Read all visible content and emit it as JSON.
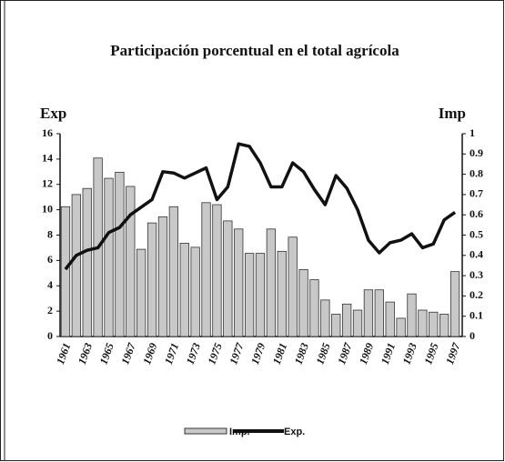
{
  "chart_data": {
    "type": "bar-line",
    "title": "Participación porcentual en el total agrícola",
    "ylabel": "Exp",
    "y2label": "Imp",
    "categories": [
      "1961",
      null,
      "1963",
      null,
      "1965",
      null,
      "1967",
      null,
      "1969",
      null,
      "1971",
      null,
      "1973",
      null,
      "1975",
      null,
      "1977",
      null,
      "1979",
      null,
      "1981",
      null,
      "1983",
      null,
      "1985",
      null,
      "1987",
      null,
      "1989",
      null,
      "1991",
      null,
      "1993",
      null,
      "1995",
      null,
      "1997"
    ],
    "series": [
      {
        "name": "Imp.",
        "type": "bar",
        "axis": "y2",
        "color": "#c8c8c8",
        "values": [
          0.64,
          0.7,
          0.73,
          0.88,
          0.78,
          0.81,
          0.74,
          0.43,
          0.56,
          0.59,
          0.64,
          0.46,
          0.44,
          0.66,
          0.65,
          0.57,
          0.53,
          0.41,
          0.41,
          0.53,
          0.42,
          0.49,
          0.33,
          0.28,
          0.18,
          0.11,
          0.16,
          0.13,
          0.23,
          0.23,
          0.17,
          0.09,
          0.21,
          0.13,
          0.12,
          0.11,
          0.32
        ]
      },
      {
        "name": "Exp.",
        "type": "line",
        "color": "#111111",
        "values": [
          5.3,
          6.4,
          6.8,
          7.0,
          8.2,
          8.6,
          9.6,
          10.2,
          10.8,
          13.0,
          12.9,
          12.5,
          12.9,
          13.3,
          10.8,
          11.8,
          15.2,
          15.0,
          13.7,
          11.8,
          11.8,
          13.7,
          13.0,
          11.6,
          10.4,
          12.7,
          11.7,
          10.0,
          7.6,
          6.6,
          7.4,
          7.6,
          8.1,
          7.0,
          7.3,
          9.2,
          9.8
        ]
      }
    ],
    "ylim": [
      0,
      16
    ],
    "yticks": [
      0,
      2,
      4,
      6,
      8,
      10,
      12,
      14,
      16
    ],
    "y2lim": [
      0,
      1
    ],
    "y2ticks": [
      0,
      0.1,
      0.2,
      0.3,
      0.4,
      0.5,
      0.6,
      0.7,
      0.8,
      0.9,
      1
    ]
  }
}
